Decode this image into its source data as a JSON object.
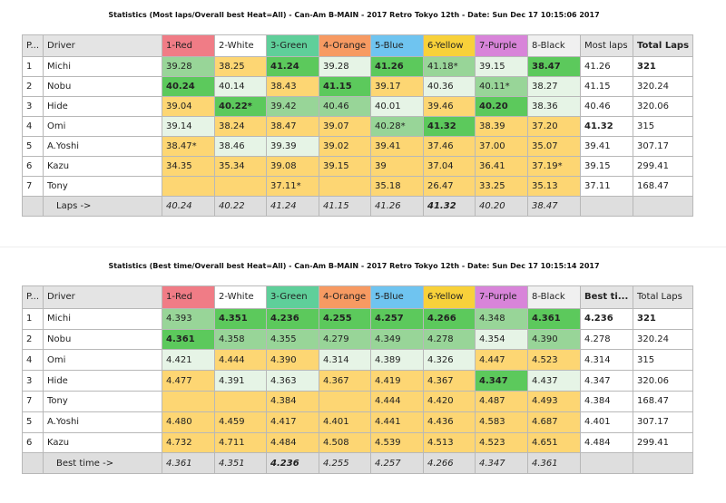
{
  "tables": [
    {
      "title": "Statistics (Most laps/Overall best Heat=All) - Can-Am B-MAIN - 2017 Retro Tokyo 12th - Date: Sun Dec 17 10:15:06 2017",
      "headers": [
        "P...",
        "Driver",
        "1-Red",
        "2-White",
        "3-Green",
        "4-Orange",
        "5-Blue",
        "6-Yellow",
        "7-Purple",
        "8-Black",
        "Most laps",
        "Total Laps"
      ],
      "header_colors": [
        "",
        "",
        "#f07c86",
        "#ffffff",
        "#5fcf9a",
        "#f79a62",
        "#6fc4f0",
        "#f8d13a",
        "#d884d9",
        "#f0f0f0",
        "",
        ""
      ],
      "header_bold": [
        false,
        false,
        false,
        false,
        false,
        false,
        false,
        false,
        false,
        false,
        false,
        true
      ],
      "rows": [
        {
          "p": "1",
          "driver": "Michi",
          "cells": [
            "39.28",
            "38.25",
            "41.24",
            "39.28",
            "41.26",
            "41.18*",
            "39.15",
            "38.47"
          ],
          "fills": [
            "M",
            "Y",
            "G",
            "L",
            "G",
            "M",
            "L",
            "G"
          ],
          "bold": [
            0,
            0,
            1,
            0,
            1,
            0,
            0,
            1
          ],
          "best": "41.26",
          "best_bold": false,
          "total": "321",
          "total_bold": true
        },
        {
          "p": "2",
          "driver": "Nobu",
          "cells": [
            "40.24",
            "40.14",
            "38.43",
            "41.15",
            "39.17",
            "40.36",
            "40.11*",
            "38.27"
          ],
          "fills": [
            "G",
            "L",
            "Y",
            "G",
            "Y",
            "L",
            "M",
            "L"
          ],
          "bold": [
            1,
            0,
            0,
            1,
            0,
            0,
            0,
            0
          ],
          "best": "41.15",
          "best_bold": false,
          "total": "320.24",
          "total_bold": false
        },
        {
          "p": "3",
          "driver": "Hide",
          "cells": [
            "39.04",
            "40.22*",
            "39.42",
            "40.46",
            "40.01",
            "39.46",
            "40.20",
            "38.36"
          ],
          "fills": [
            "Y",
            "G",
            "M",
            "M",
            "L",
            "Y",
            "G",
            "L"
          ],
          "bold": [
            0,
            1,
            0,
            0,
            0,
            0,
            1,
            0
          ],
          "best": "40.46",
          "best_bold": false,
          "total": "320.06",
          "total_bold": false
        },
        {
          "p": "4",
          "driver": "Omi",
          "cells": [
            "39.14",
            "38.24",
            "38.47",
            "39.07",
            "40.28*",
            "41.32",
            "38.39",
            "37.20"
          ],
          "fills": [
            "L",
            "Y",
            "Y",
            "Y",
            "M",
            "G",
            "Y",
            "Y"
          ],
          "bold": [
            0,
            0,
            0,
            0,
            0,
            1,
            0,
            0
          ],
          "best": "41.32",
          "best_bold": true,
          "total": "315",
          "total_bold": false
        },
        {
          "p": "5",
          "driver": "A.Yoshi",
          "cells": [
            "38.47*",
            "38.46",
            "39.39",
            "39.02",
            "39.41",
            "37.46",
            "37.00",
            "35.07"
          ],
          "fills": [
            "Y",
            "L",
            "L",
            "Y",
            "Y",
            "Y",
            "Y",
            "Y"
          ],
          "bold": [
            0,
            0,
            0,
            0,
            0,
            0,
            0,
            0
          ],
          "best": "39.41",
          "best_bold": false,
          "total": "307.17",
          "total_bold": false
        },
        {
          "p": "6",
          "driver": "Kazu",
          "cells": [
            "34.35",
            "35.34",
            "39.08",
            "39.15",
            "39",
            "37.04",
            "36.41",
            "37.19*"
          ],
          "fills": [
            "Y",
            "Y",
            "Y",
            "Y",
            "Y",
            "Y",
            "Y",
            "Y"
          ],
          "bold": [
            0,
            0,
            0,
            0,
            0,
            0,
            0,
            0
          ],
          "best": "39.15",
          "best_bold": false,
          "total": "299.41",
          "total_bold": false
        },
        {
          "p": "7",
          "driver": "Tony",
          "cells": [
            "",
            "",
            "37.11*",
            "",
            "35.18",
            "26.47",
            "33.25",
            "35.13"
          ],
          "fills": [
            "Y",
            "Y",
            "Y",
            "Y",
            "Y",
            "Y",
            "Y",
            "Y"
          ],
          "bold": [
            0,
            0,
            0,
            0,
            0,
            0,
            0,
            0
          ],
          "best": "37.11",
          "best_bold": false,
          "total": "168.47",
          "total_bold": false
        }
      ],
      "footer": {
        "label": "Laps ->",
        "cells": [
          "40.24",
          "40.22",
          "41.24",
          "41.15",
          "41.26",
          "41.32",
          "40.20",
          "38.47"
        ],
        "bold": [
          0,
          0,
          0,
          0,
          0,
          1,
          0,
          0
        ]
      }
    },
    {
      "title": "Statistics (Best time/Overall best Heat=All) - Can-Am B-MAIN - 2017 Retro Tokyo 12th - Date: Sun Dec 17 10:15:14 2017",
      "headers": [
        "P...",
        "Driver",
        "1-Red",
        "2-White",
        "3-Green",
        "4-Orange",
        "5-Blue",
        "6-Yellow",
        "7-Purple",
        "8-Black",
        "Best ti...",
        "Total Laps"
      ],
      "header_colors": [
        "",
        "",
        "#f07c86",
        "#ffffff",
        "#5fcf9a",
        "#f79a62",
        "#6fc4f0",
        "#f8d13a",
        "#d884d9",
        "#f0f0f0",
        "",
        ""
      ],
      "header_bold": [
        false,
        false,
        false,
        false,
        false,
        false,
        false,
        false,
        false,
        false,
        true,
        false
      ],
      "rows": [
        {
          "p": "1",
          "driver": "Michi",
          "cells": [
            "4.393",
            "4.351",
            "4.236",
            "4.255",
            "4.257",
            "4.266",
            "4.348",
            "4.361"
          ],
          "fills": [
            "M",
            "G",
            "G",
            "G",
            "G",
            "G",
            "M",
            "G"
          ],
          "bold": [
            0,
            1,
            1,
            1,
            1,
            1,
            0,
            1
          ],
          "best": "4.236",
          "best_bold": true,
          "total": "321",
          "total_bold": true
        },
        {
          "p": "2",
          "driver": "Nobu",
          "cells": [
            "4.361",
            "4.358",
            "4.355",
            "4.279",
            "4.349",
            "4.278",
            "4.354",
            "4.390"
          ],
          "fills": [
            "G",
            "M",
            "M",
            "M",
            "M",
            "M",
            "L",
            "M"
          ],
          "bold": [
            1,
            0,
            0,
            0,
            0,
            0,
            0,
            0
          ],
          "best": "4.278",
          "best_bold": false,
          "total": "320.24",
          "total_bold": false
        },
        {
          "p": "4",
          "driver": "Omi",
          "cells": [
            "4.421",
            "4.444",
            "4.390",
            "4.314",
            "4.389",
            "4.326",
            "4.447",
            "4.523"
          ],
          "fills": [
            "L",
            "Y",
            "Y",
            "L",
            "L",
            "L",
            "Y",
            "Y"
          ],
          "bold": [
            0,
            0,
            0,
            0,
            0,
            0,
            0,
            0
          ],
          "best": "4.314",
          "best_bold": false,
          "total": "315",
          "total_bold": false
        },
        {
          "p": "3",
          "driver": "Hide",
          "cells": [
            "4.477",
            "4.391",
            "4.363",
            "4.367",
            "4.419",
            "4.367",
            "4.347",
            "4.437"
          ],
          "fills": [
            "Y",
            "L",
            "L",
            "Y",
            "Y",
            "Y",
            "G",
            "L"
          ],
          "bold": [
            0,
            0,
            0,
            0,
            0,
            0,
            1,
            0
          ],
          "best": "4.347",
          "best_bold": false,
          "total": "320.06",
          "total_bold": false
        },
        {
          "p": "7",
          "driver": "Tony",
          "cells": [
            "",
            "",
            "4.384",
            "",
            "4.444",
            "4.420",
            "4.487",
            "4.493"
          ],
          "fills": [
            "Y",
            "Y",
            "Y",
            "Y",
            "Y",
            "Y",
            "Y",
            "Y"
          ],
          "bold": [
            0,
            0,
            0,
            0,
            0,
            0,
            0,
            0
          ],
          "best": "4.384",
          "best_bold": false,
          "total": "168.47",
          "total_bold": false
        },
        {
          "p": "5",
          "driver": "A.Yoshi",
          "cells": [
            "4.480",
            "4.459",
            "4.417",
            "4.401",
            "4.441",
            "4.436",
            "4.583",
            "4.687"
          ],
          "fills": [
            "Y",
            "Y",
            "Y",
            "Y",
            "Y",
            "Y",
            "Y",
            "Y"
          ],
          "bold": [
            0,
            0,
            0,
            0,
            0,
            0,
            0,
            0
          ],
          "best": "4.401",
          "best_bold": false,
          "total": "307.17",
          "total_bold": false
        },
        {
          "p": "6",
          "driver": "Kazu",
          "cells": [
            "4.732",
            "4.711",
            "4.484",
            "4.508",
            "4.539",
            "4.513",
            "4.523",
            "4.651"
          ],
          "fills": [
            "Y",
            "Y",
            "Y",
            "Y",
            "Y",
            "Y",
            "Y",
            "Y"
          ],
          "bold": [
            0,
            0,
            0,
            0,
            0,
            0,
            0,
            0
          ],
          "best": "4.484",
          "best_bold": false,
          "total": "299.41",
          "total_bold": false
        }
      ],
      "footer": {
        "label": "Best time ->",
        "cells": [
          "4.361",
          "4.351",
          "4.236",
          "4.255",
          "4.257",
          "4.266",
          "4.347",
          "4.361"
        ],
        "bold": [
          0,
          0,
          1,
          0,
          0,
          0,
          0,
          0
        ]
      }
    }
  ]
}
